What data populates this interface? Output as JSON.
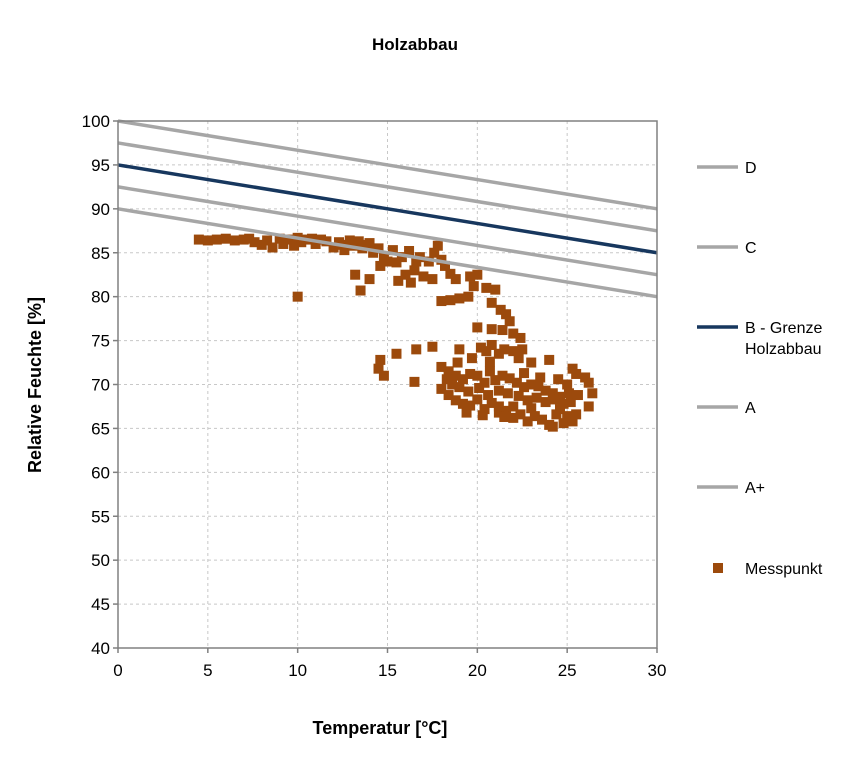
{
  "chart_data": {
    "type": "scatter",
    "title": "Holzabbau",
    "xlabel": "Temperatur [°C]",
    "ylabel": "Relative Feuchte [%]",
    "xlim": [
      0,
      30
    ],
    "ylim": [
      40,
      100
    ],
    "xticks": [
      "0",
      "5",
      "10",
      "15",
      "20",
      "25",
      "30"
    ],
    "yticks": [
      "40",
      "45",
      "50",
      "55",
      "60",
      "65",
      "70",
      "75",
      "80",
      "85",
      "90",
      "95",
      "100"
    ],
    "grid": true,
    "legend_position": "right",
    "lines": [
      {
        "name": "D",
        "color": "#a6a6a6",
        "x": [
          0,
          30
        ],
        "y": [
          100,
          90
        ]
      },
      {
        "name": "C",
        "color": "#a6a6a6",
        "x": [
          0,
          30
        ],
        "y": [
          97.5,
          87.5
        ]
      },
      {
        "name": "B - Grenze Holzabbau",
        "color": "#17375e",
        "x": [
          0,
          30
        ],
        "y": [
          95,
          85
        ]
      },
      {
        "name": "A",
        "color": "#a6a6a6",
        "x": [
          0,
          30
        ],
        "y": [
          92.5,
          82.5
        ]
      },
      {
        "name": "A+",
        "color": "#a6a6a6",
        "x": [
          0,
          30
        ],
        "y": [
          90,
          80
        ]
      }
    ],
    "scatter": {
      "name": "Messpunkt",
      "color": "#9c4a0c",
      "points": [
        [
          4.5,
          86.5
        ],
        [
          5.0,
          86.4
        ],
        [
          5.5,
          86.5
        ],
        [
          6.0,
          86.6
        ],
        [
          6.5,
          86.4
        ],
        [
          7.0,
          86.5
        ],
        [
          7.3,
          86.6
        ],
        [
          7.6,
          86.2
        ],
        [
          8.0,
          85.9
        ],
        [
          8.3,
          86.4
        ],
        [
          8.6,
          85.6
        ],
        [
          9.0,
          86.6
        ],
        [
          9.2,
          86.0
        ],
        [
          9.5,
          86.5
        ],
        [
          9.8,
          85.8
        ],
        [
          10.0,
          86.7
        ],
        [
          10.2,
          86.2
        ],
        [
          10.5,
          86.5
        ],
        [
          10.8,
          86.6
        ],
        [
          11.0,
          86.0
        ],
        [
          11.3,
          86.5
        ],
        [
          11.6,
          86.3
        ],
        [
          12.0,
          85.6
        ],
        [
          12.3,
          86.2
        ],
        [
          12.6,
          85.3
        ],
        [
          12.9,
          86.4
        ],
        [
          13.1,
          85.8
        ],
        [
          13.4,
          86.3
        ],
        [
          13.6,
          85.5
        ],
        [
          13.8,
          85.9
        ],
        [
          14.0,
          86.1
        ],
        [
          14.2,
          85.0
        ],
        [
          14.5,
          85.5
        ],
        [
          14.8,
          84.6
        ],
        [
          15.0,
          84.0
        ],
        [
          15.3,
          85.3
        ],
        [
          15.5,
          83.9
        ],
        [
          15.8,
          84.5
        ],
        [
          16.0,
          82.5
        ],
        [
          16.2,
          85.2
        ],
        [
          16.5,
          83.0
        ],
        [
          16.8,
          84.5
        ],
        [
          17.0,
          82.3
        ],
        [
          17.3,
          84.0
        ],
        [
          17.5,
          82.0
        ],
        [
          17.8,
          85.8
        ],
        [
          18.0,
          84.2
        ],
        [
          18.2,
          83.5
        ],
        [
          18.5,
          82.6
        ],
        [
          13.2,
          82.5
        ],
        [
          13.5,
          80.7
        ],
        [
          14.0,
          82.0
        ],
        [
          15.6,
          81.8
        ],
        [
          16.3,
          81.6
        ],
        [
          18.0,
          79.5
        ],
        [
          18.5,
          79.6
        ],
        [
          19.0,
          79.8
        ],
        [
          19.5,
          80.0
        ],
        [
          20.0,
          82.5
        ],
        [
          20.5,
          81.0
        ],
        [
          10.0,
          80.0
        ],
        [
          18.8,
          82.0
        ],
        [
          19.6,
          82.3
        ],
        [
          19.8,
          81.2
        ],
        [
          17.6,
          85.0
        ],
        [
          16.6,
          84.0
        ],
        [
          14.6,
          83.5
        ],
        [
          12.5,
          85.9
        ],
        [
          20.8,
          79.3
        ],
        [
          21.0,
          80.8
        ],
        [
          21.3,
          78.5
        ],
        [
          21.6,
          78.0
        ],
        [
          21.8,
          77.2
        ],
        [
          20.0,
          76.5
        ],
        [
          20.8,
          76.3
        ],
        [
          21.4,
          76.2
        ],
        [
          22.0,
          75.8
        ],
        [
          22.4,
          75.3
        ],
        [
          20.2,
          74.2
        ],
        [
          20.5,
          73.8
        ],
        [
          20.8,
          74.5
        ],
        [
          21.2,
          73.5
        ],
        [
          21.5,
          74.0
        ],
        [
          22.0,
          73.8
        ],
        [
          22.5,
          74.0
        ],
        [
          19.0,
          74.0
        ],
        [
          17.5,
          74.3
        ],
        [
          16.6,
          74.0
        ],
        [
          15.5,
          73.5
        ],
        [
          14.6,
          72.8
        ],
        [
          14.5,
          71.8
        ],
        [
          14.8,
          71.0
        ],
        [
          16.5,
          70.3
        ],
        [
          18.0,
          72.0
        ],
        [
          18.4,
          71.5
        ],
        [
          18.8,
          71.0
        ],
        [
          19.2,
          70.6
        ],
        [
          19.6,
          71.2
        ],
        [
          20.0,
          71.0
        ],
        [
          20.4,
          70.2
        ],
        [
          20.7,
          71.5
        ],
        [
          21.0,
          70.5
        ],
        [
          21.4,
          71.0
        ],
        [
          21.8,
          70.7
        ],
        [
          22.2,
          70.2
        ],
        [
          22.6,
          69.7
        ],
        [
          23.0,
          70.0
        ],
        [
          23.4,
          69.8
        ],
        [
          23.8,
          69.3
        ],
        [
          24.2,
          69.0
        ],
        [
          24.6,
          68.6
        ],
        [
          25.0,
          70.0
        ],
        [
          25.3,
          71.8
        ],
        [
          26.0,
          70.8
        ],
        [
          26.2,
          70.2
        ],
        [
          26.4,
          69.0
        ],
        [
          26.2,
          67.5
        ],
        [
          18.0,
          69.5
        ],
        [
          18.4,
          68.8
        ],
        [
          18.8,
          68.2
        ],
        [
          19.2,
          67.8
        ],
        [
          19.6,
          67.6
        ],
        [
          20.0,
          68.3
        ],
        [
          20.4,
          67.2
        ],
        [
          20.8,
          67.9
        ],
        [
          21.2,
          66.8
        ],
        [
          21.6,
          67.0
        ],
        [
          22.0,
          67.5
        ],
        [
          22.4,
          66.6
        ],
        [
          22.8,
          65.8
        ],
        [
          23.2,
          66.4
        ],
        [
          23.6,
          66.0
        ],
        [
          24.0,
          65.4
        ],
        [
          24.4,
          66.6
        ],
        [
          24.8,
          65.6
        ],
        [
          25.0,
          66.4
        ],
        [
          25.3,
          65.8
        ],
        [
          25.5,
          66.6
        ],
        [
          25.2,
          68.0
        ],
        [
          24.8,
          67.8
        ],
        [
          24.3,
          68.3
        ],
        [
          23.8,
          68.0
        ],
        [
          23.3,
          68.5
        ],
        [
          22.8,
          68.2
        ],
        [
          22.3,
          68.7
        ],
        [
          21.7,
          69.0
        ],
        [
          21.2,
          69.3
        ],
        [
          20.6,
          68.8
        ],
        [
          20.1,
          69.6
        ],
        [
          19.5,
          69.2
        ],
        [
          19.0,
          69.7
        ],
        [
          18.6,
          70.0
        ],
        [
          18.3,
          70.6
        ],
        [
          22.3,
          73.0
        ],
        [
          23.0,
          72.5
        ],
        [
          24.0,
          72.8
        ],
        [
          25.5,
          71.2
        ],
        [
          23.5,
          70.8
        ],
        [
          24.5,
          70.6
        ],
        [
          22.6,
          71.3
        ],
        [
          20.7,
          72.6
        ],
        [
          19.7,
          73.0
        ],
        [
          18.9,
          72.5
        ],
        [
          21.2,
          67.5
        ],
        [
          22.0,
          66.2
        ],
        [
          23.0,
          67.3
        ],
        [
          24.6,
          67.2
        ],
        [
          25.6,
          68.8
        ],
        [
          25.1,
          69.0
        ],
        [
          19.4,
          66.8
        ],
        [
          20.3,
          66.5
        ],
        [
          21.5,
          66.3
        ],
        [
          24.2,
          65.2
        ]
      ]
    }
  }
}
